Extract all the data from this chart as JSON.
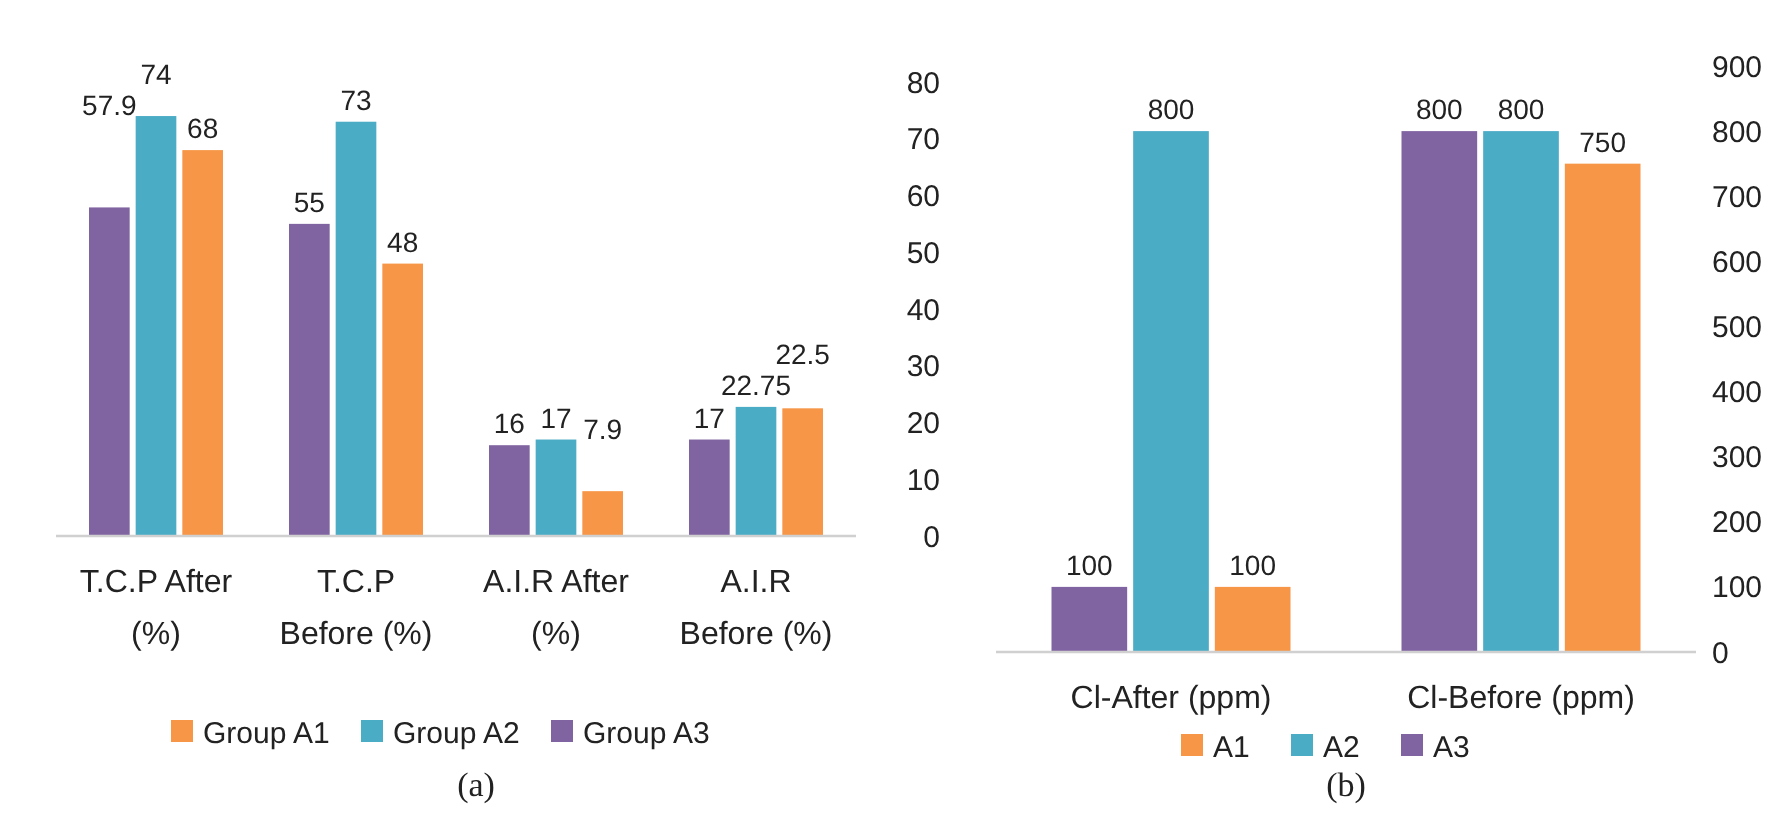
{
  "chart_data": [
    {
      "type": "bar",
      "categories": [
        "T.C.P After (%)",
        "T.C.P Before (%)",
        "A.I.R After (%)",
        "A.I.R Before (%)"
      ],
      "series": [
        {
          "name": "Group A3",
          "color": "#8064a2",
          "values": [
            57.9,
            55,
            16,
            17
          ]
        },
        {
          "name": "Group A2",
          "color": "#4bacc6",
          "values": [
            74,
            73,
            17,
            22.75
          ]
        },
        {
          "name": "Group A1",
          "color": "#f79646",
          "values": [
            68,
            48,
            7.9,
            22.5
          ]
        }
      ],
      "ylim": [
        0,
        80
      ],
      "yticks": [
        0,
        10,
        20,
        30,
        40,
        50,
        60,
        70,
        80
      ],
      "data_labels": true,
      "legend": "bottom",
      "grid": false,
      "annotations": [
        "(a)"
      ]
    },
    {
      "type": "bar",
      "categories": [
        "Cl-After (ppm)",
        "Cl-Before (ppm)"
      ],
      "series": [
        {
          "name": "A3",
          "color": "#8064a2",
          "values": [
            100,
            800
          ]
        },
        {
          "name": "A2",
          "color": "#4bacc6",
          "values": [
            800,
            800
          ]
        },
        {
          "name": "A1",
          "color": "#f79646",
          "values": [
            100,
            750
          ]
        }
      ],
      "ylim": [
        0,
        900
      ],
      "yticks": [
        0,
        100,
        200,
        300,
        400,
        500,
        600,
        700,
        800,
        900
      ],
      "data_labels": true,
      "legend": "bottom",
      "grid": false,
      "annotations": [
        "(b)"
      ]
    }
  ]
}
